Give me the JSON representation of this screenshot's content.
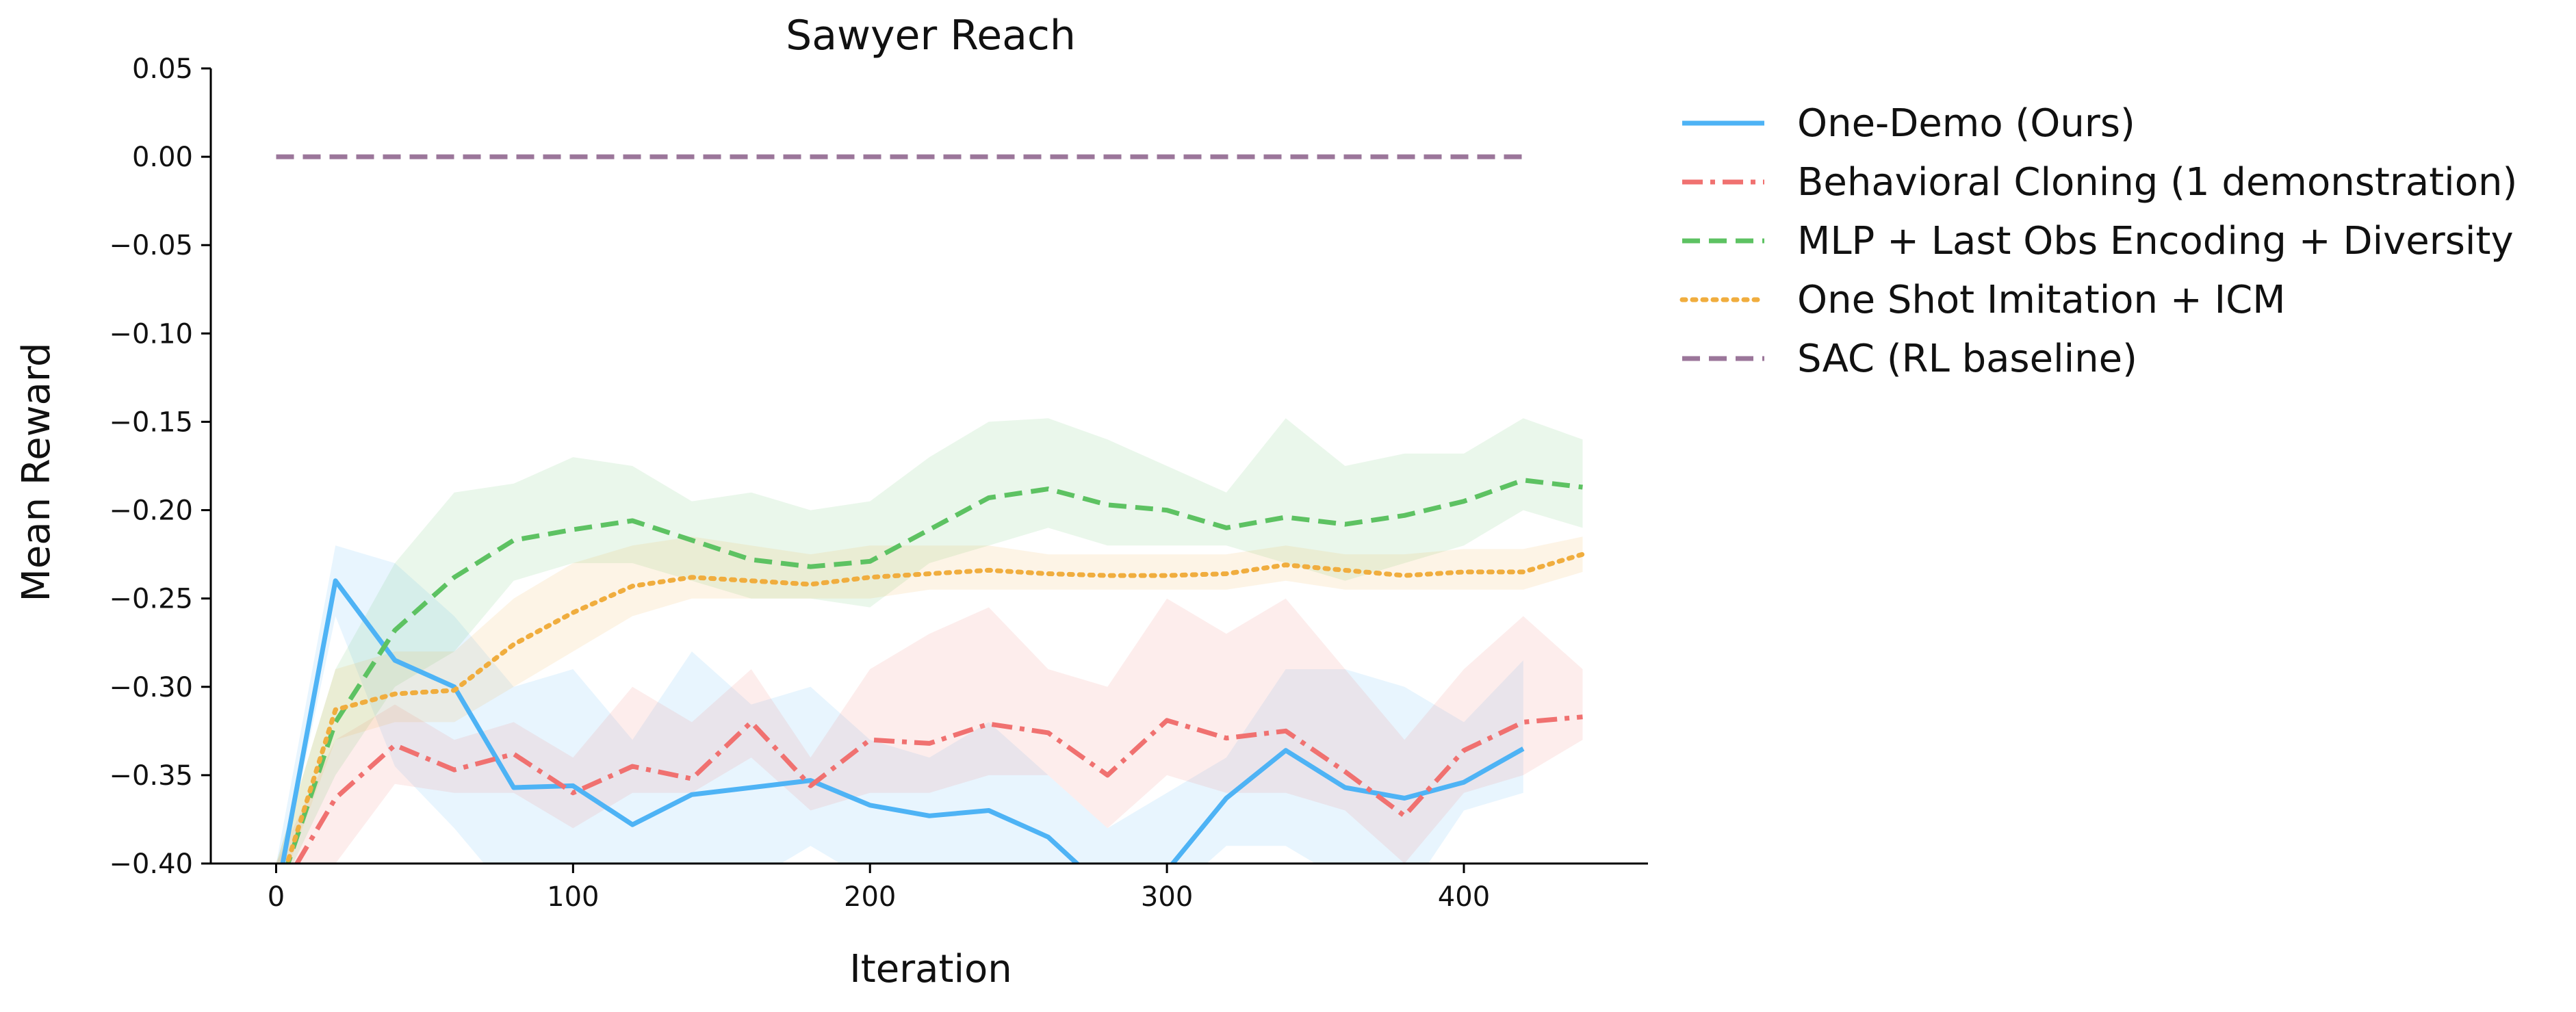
{
  "chart_data": {
    "type": "line",
    "title": "Sawyer Reach",
    "xlabel": "Iteration",
    "ylabel": "Mean Reward",
    "xlim": [
      -22,
      462
    ],
    "ylim": [
      -0.4,
      0.05
    ],
    "xticks": [
      0,
      100,
      200,
      300,
      400
    ],
    "xtick_labels": [
      "0",
      "100",
      "200",
      "300",
      "400"
    ],
    "yticks": [
      0.05,
      0.0,
      -0.05,
      -0.1,
      -0.15,
      -0.2,
      -0.25,
      -0.3,
      -0.35,
      -0.4
    ],
    "ytick_labels": [
      "0.05",
      "0.00",
      "−0.05",
      "−0.10",
      "−0.15",
      "−0.20",
      "−0.25",
      "−0.30",
      "−0.35",
      "−0.40"
    ],
    "grid": false,
    "legend_position": "outside-right",
    "series": [
      {
        "name": "One-Demo (Ours)",
        "color": "#4eb3f5",
        "style": "solid",
        "x": [
          0,
          20,
          40,
          60,
          80,
          100,
          120,
          140,
          160,
          180,
          200,
          220,
          240,
          260,
          280,
          300,
          320,
          340,
          360,
          380,
          400,
          420
        ],
        "y": [
          -0.42,
          -0.24,
          -0.285,
          -0.3,
          -0.357,
          -0.356,
          -0.378,
          -0.361,
          -0.357,
          -0.353,
          -0.367,
          -0.373,
          -0.37,
          -0.385,
          -0.416,
          -0.404,
          -0.363,
          -0.336,
          -0.357,
          -0.363,
          -0.354,
          -0.335
        ],
        "lower": [
          -0.42,
          -0.26,
          -0.345,
          -0.38,
          -0.42,
          -0.42,
          -0.42,
          -0.42,
          -0.41,
          -0.39,
          -0.41,
          -0.4,
          -0.42,
          -0.42,
          -0.42,
          -0.42,
          -0.39,
          -0.39,
          -0.41,
          -0.42,
          -0.37,
          -0.36
        ],
        "upper": [
          -0.4,
          -0.22,
          -0.23,
          -0.26,
          -0.3,
          -0.29,
          -0.33,
          -0.28,
          -0.31,
          -0.3,
          -0.33,
          -0.34,
          -0.32,
          -0.35,
          -0.38,
          -0.36,
          -0.34,
          -0.29,
          -0.29,
          -0.3,
          -0.32,
          -0.285
        ]
      },
      {
        "name": "Behavioral Cloning (1 demonstration)",
        "color": "#f07170",
        "style": "dashdot",
        "x": [
          0,
          20,
          40,
          60,
          80,
          100,
          120,
          140,
          160,
          180,
          200,
          220,
          240,
          260,
          280,
          300,
          320,
          340,
          360,
          380,
          400,
          420,
          440
        ],
        "y": [
          -0.42,
          -0.363,
          -0.333,
          -0.347,
          -0.338,
          -0.36,
          -0.345,
          -0.352,
          -0.32,
          -0.356,
          -0.33,
          -0.332,
          -0.321,
          -0.326,
          -0.35,
          -0.319,
          -0.329,
          -0.325,
          -0.348,
          -0.373,
          -0.336,
          -0.32,
          -0.317
        ],
        "lower": [
          -0.42,
          -0.4,
          -0.355,
          -0.36,
          -0.36,
          -0.38,
          -0.36,
          -0.36,
          -0.34,
          -0.37,
          -0.36,
          -0.36,
          -0.35,
          -0.35,
          -0.38,
          -0.35,
          -0.36,
          -0.36,
          -0.37,
          -0.4,
          -0.36,
          -0.35,
          -0.33
        ],
        "upper": [
          -0.4,
          -0.33,
          -0.31,
          -0.33,
          -0.32,
          -0.34,
          -0.3,
          -0.32,
          -0.29,
          -0.34,
          -0.29,
          -0.27,
          -0.255,
          -0.29,
          -0.3,
          -0.25,
          -0.27,
          -0.25,
          -0.29,
          -0.33,
          -0.29,
          -0.26,
          -0.29
        ]
      },
      {
        "name": "MLP + Last Obs Encoding + Diversity",
        "color": "#5dc262",
        "style": "dashed",
        "x": [
          0,
          20,
          40,
          60,
          80,
          100,
          120,
          140,
          160,
          180,
          200,
          220,
          240,
          260,
          280,
          300,
          320,
          340,
          360,
          380,
          400,
          420,
          440
        ],
        "y": [
          -0.42,
          -0.32,
          -0.268,
          -0.238,
          -0.217,
          -0.211,
          -0.206,
          -0.217,
          -0.228,
          -0.232,
          -0.229,
          -0.211,
          -0.193,
          -0.188,
          -0.197,
          -0.2,
          -0.21,
          -0.204,
          -0.208,
          -0.203,
          -0.195,
          -0.183,
          -0.187
        ],
        "lower": [
          -0.42,
          -0.35,
          -0.3,
          -0.28,
          -0.24,
          -0.23,
          -0.23,
          -0.24,
          -0.25,
          -0.25,
          -0.255,
          -0.23,
          -0.22,
          -0.21,
          -0.22,
          -0.22,
          -0.22,
          -0.23,
          -0.24,
          -0.23,
          -0.22,
          -0.2,
          -0.21
        ],
        "upper": [
          -0.4,
          -0.29,
          -0.23,
          -0.19,
          -0.185,
          -0.17,
          -0.175,
          -0.195,
          -0.19,
          -0.2,
          -0.195,
          -0.17,
          -0.15,
          -0.148,
          -0.16,
          -0.175,
          -0.19,
          -0.148,
          -0.175,
          -0.168,
          -0.168,
          -0.148,
          -0.16
        ]
      },
      {
        "name": "One Shot Imitation + ICM",
        "color": "#f0ad3e",
        "style": "dotted",
        "x": [
          0,
          20,
          40,
          60,
          80,
          100,
          120,
          140,
          160,
          180,
          200,
          220,
          240,
          260,
          280,
          300,
          320,
          340,
          360,
          380,
          400,
          420,
          440
        ],
        "y": [
          -0.42,
          -0.313,
          -0.304,
          -0.302,
          -0.276,
          -0.258,
          -0.243,
          -0.238,
          -0.24,
          -0.242,
          -0.238,
          -0.236,
          -0.234,
          -0.236,
          -0.237,
          -0.237,
          -0.236,
          -0.231,
          -0.234,
          -0.237,
          -0.235,
          -0.235,
          -0.225
        ],
        "lower": [
          -0.42,
          -0.33,
          -0.32,
          -0.32,
          -0.3,
          -0.28,
          -0.26,
          -0.25,
          -0.25,
          -0.25,
          -0.25,
          -0.245,
          -0.245,
          -0.245,
          -0.245,
          -0.245,
          -0.245,
          -0.24,
          -0.245,
          -0.245,
          -0.245,
          -0.245,
          -0.235
        ],
        "upper": [
          -0.4,
          -0.29,
          -0.28,
          -0.28,
          -0.25,
          -0.23,
          -0.22,
          -0.215,
          -0.22,
          -0.225,
          -0.22,
          -0.22,
          -0.22,
          -0.225,
          -0.225,
          -0.225,
          -0.225,
          -0.22,
          -0.225,
          -0.225,
          -0.222,
          -0.222,
          -0.215
        ]
      },
      {
        "name": "SAC (RL baseline)",
        "color": "#9b769a",
        "style": "dashed",
        "x": [
          0,
          420
        ],
        "y": [
          0.0,
          0.0
        ]
      }
    ]
  }
}
